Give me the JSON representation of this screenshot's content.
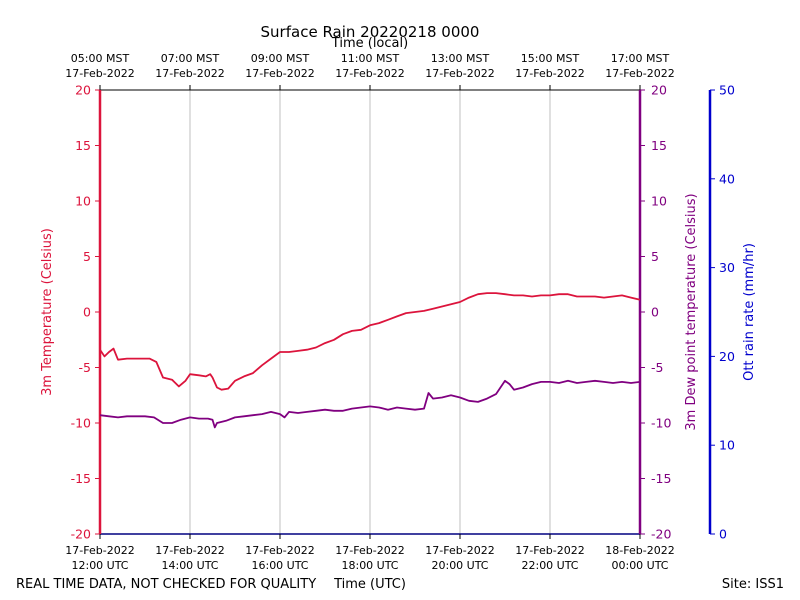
{
  "chart_data": {
    "type": "line",
    "title": "Surface Rain 20220218 0000",
    "top_axis_label": "Time (local)",
    "xlabel": "Time (UTC)",
    "ylabel_left": "3m Temperature (Celsius)",
    "ylabel_right": "3m Dew point temperature (Celsius)",
    "ylabel_far_right": "Ott rain rate (mm/hr)",
    "footer_left": "REAL TIME DATA, NOT CHECKED FOR QUALITY",
    "footer_right": "Site: ISS1",
    "grid": true,
    "x_range_hours_utc": [
      12,
      24
    ],
    "ylim_left": [
      -20,
      20
    ],
    "ylim_right": [
      -20,
      20
    ],
    "ylim_far_right": [
      0,
      50
    ],
    "y_ticks_left": [
      -20,
      -15,
      -10,
      -5,
      0,
      5,
      10,
      15,
      20
    ],
    "y_ticks_far_right": [
      0,
      10,
      20,
      30,
      40,
      50
    ],
    "bottom_ticks": [
      {
        "hour": 12,
        "line1": "17-Feb-2022",
        "line2": "12:00 UTC"
      },
      {
        "hour": 14,
        "line1": "17-Feb-2022",
        "line2": "14:00 UTC"
      },
      {
        "hour": 16,
        "line1": "17-Feb-2022",
        "line2": "16:00 UTC"
      },
      {
        "hour": 18,
        "line1": "17-Feb-2022",
        "line2": "18:00 UTC"
      },
      {
        "hour": 20,
        "line1": "17-Feb-2022",
        "line2": "20:00 UTC"
      },
      {
        "hour": 22,
        "line1": "17-Feb-2022",
        "line2": "22:00 UTC"
      },
      {
        "hour": 24,
        "line1": "18-Feb-2022",
        "line2": "00:00 UTC"
      }
    ],
    "top_ticks": [
      {
        "hour": 12,
        "line1": "05:00 MST",
        "line2": "17-Feb-2022"
      },
      {
        "hour": 14,
        "line1": "07:00 MST",
        "line2": "17-Feb-2022"
      },
      {
        "hour": 16,
        "line1": "09:00 MST",
        "line2": "17-Feb-2022"
      },
      {
        "hour": 18,
        "line1": "11:00 MST",
        "line2": "17-Feb-2022"
      },
      {
        "hour": 20,
        "line1": "13:00 MST",
        "line2": "17-Feb-2022"
      },
      {
        "hour": 22,
        "line1": "15:00 MST",
        "line2": "17-Feb-2022"
      },
      {
        "hour": 24,
        "line1": "17:00 MST",
        "line2": "17-Feb-2022"
      }
    ],
    "series": [
      {
        "name": "3m Temperature",
        "axis": "left",
        "color": "#dc143c",
        "x": [
          12.0,
          12.1,
          12.2,
          12.3,
          12.4,
          12.6,
          12.8,
          13.0,
          13.1,
          13.25,
          13.4,
          13.6,
          13.75,
          13.9,
          14.0,
          14.2,
          14.35,
          14.45,
          14.5,
          14.6,
          14.7,
          14.85,
          15.0,
          15.2,
          15.4,
          15.6,
          15.8,
          16.0,
          16.2,
          16.4,
          16.6,
          16.8,
          17.0,
          17.2,
          17.4,
          17.6,
          17.8,
          18.0,
          18.2,
          18.4,
          18.6,
          18.8,
          19.0,
          19.2,
          19.4,
          19.6,
          19.8,
          20.0,
          20.2,
          20.4,
          20.6,
          20.8,
          21.0,
          21.2,
          21.4,
          21.6,
          21.8,
          22.0,
          22.2,
          22.4,
          22.6,
          22.8,
          23.0,
          23.2,
          23.4,
          23.6,
          23.8,
          24.0
        ],
        "values": [
          -3.4,
          -4.0,
          -3.6,
          -3.3,
          -4.3,
          -4.2,
          -4.2,
          -4.2,
          -4.2,
          -4.5,
          -5.9,
          -6.1,
          -6.7,
          -6.2,
          -5.6,
          -5.7,
          -5.8,
          -5.6,
          -5.9,
          -6.8,
          -7.0,
          -6.9,
          -6.2,
          -5.8,
          -5.5,
          -4.8,
          -4.2,
          -3.6,
          -3.6,
          -3.5,
          -3.4,
          -3.2,
          -2.8,
          -2.5,
          -2.0,
          -1.7,
          -1.6,
          -1.2,
          -1.0,
          -0.7,
          -0.4,
          -0.1,
          0.0,
          0.1,
          0.3,
          0.5,
          0.7,
          0.9,
          1.3,
          1.6,
          1.7,
          1.7,
          1.6,
          1.5,
          1.5,
          1.4,
          1.5,
          1.5,
          1.6,
          1.6,
          1.4,
          1.4,
          1.4,
          1.3,
          1.4,
          1.5,
          1.3,
          1.1
        ]
      },
      {
        "name": "3m Dew point temperature",
        "axis": "right",
        "color": "#800080",
        "x": [
          12.0,
          12.2,
          12.4,
          12.6,
          12.8,
          13.0,
          13.2,
          13.4,
          13.6,
          13.8,
          14.0,
          14.2,
          14.4,
          14.5,
          14.55,
          14.6,
          14.8,
          15.0,
          15.2,
          15.4,
          15.6,
          15.8,
          16.0,
          16.1,
          16.2,
          16.4,
          16.6,
          16.8,
          17.0,
          17.2,
          17.4,
          17.6,
          17.8,
          18.0,
          18.2,
          18.4,
          18.6,
          18.8,
          19.0,
          19.2,
          19.3,
          19.4,
          19.6,
          19.8,
          20.0,
          20.2,
          20.4,
          20.6,
          20.8,
          21.0,
          21.1,
          21.2,
          21.4,
          21.6,
          21.8,
          22.0,
          22.2,
          22.4,
          22.6,
          22.8,
          23.0,
          23.2,
          23.4,
          23.6,
          23.8,
          24.0
        ],
        "values": [
          -9.3,
          -9.4,
          -9.5,
          -9.4,
          -9.4,
          -9.4,
          -9.5,
          -10.0,
          -10.0,
          -9.7,
          -9.5,
          -9.6,
          -9.6,
          -9.7,
          -10.4,
          -10.0,
          -9.8,
          -9.5,
          -9.4,
          -9.3,
          -9.2,
          -9.0,
          -9.2,
          -9.5,
          -9.0,
          -9.1,
          -9.0,
          -8.9,
          -8.8,
          -8.9,
          -8.9,
          -8.7,
          -8.6,
          -8.5,
          -8.6,
          -8.8,
          -8.6,
          -8.7,
          -8.8,
          -8.7,
          -7.3,
          -7.8,
          -7.7,
          -7.5,
          -7.7,
          -8.0,
          -8.1,
          -7.8,
          -7.4,
          -6.2,
          -6.5,
          -7.0,
          -6.8,
          -6.5,
          -6.3,
          -6.3,
          -6.4,
          -6.2,
          -6.4,
          -6.3,
          -6.2,
          -6.3,
          -6.4,
          -6.3,
          -6.4,
          -6.3
        ]
      }
    ]
  }
}
